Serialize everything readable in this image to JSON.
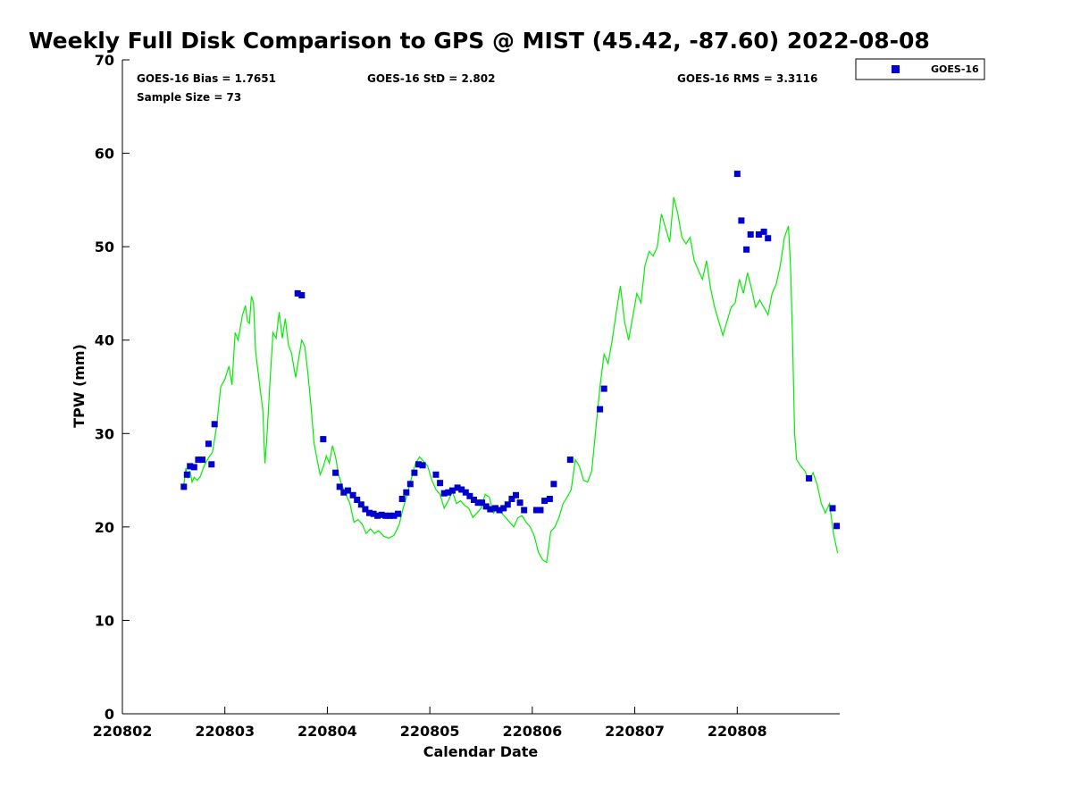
{
  "chart_data": {
    "type": "scatter",
    "title": "Weekly Full Disk Comparison to GPS @ MIST (45.42, -87.60) 2022-08-08",
    "xlabel": "Calendar Date",
    "ylabel": "TPW (mm)",
    "xlim": [
      220802,
      220809.0
    ],
    "ylim": [
      0,
      70
    ],
    "xticks": [
      "220802",
      "220803",
      "220804",
      "220805",
      "220806",
      "220807",
      "220808"
    ],
    "yticks": [
      "0",
      "10",
      "20",
      "30",
      "40",
      "50",
      "60",
      "70"
    ],
    "grid": false,
    "legend_placement": "top-right-outside",
    "colors": {
      "goes16": "#0000cc",
      "gps": "#00ee00"
    },
    "stats": {
      "bias": "GOES-16 Bias = 1.7651",
      "std": "GOES-16 StD = 2.802",
      "rms": "GOES-16 RMS = 3.3116",
      "sample_size": "Sample Size = 73"
    },
    "series": [
      {
        "name": "GOES-16",
        "x": [
          220802.6,
          220802.63,
          220802.66,
          220802.7,
          220802.74,
          220802.78,
          220802.84,
          220802.87,
          220802.9,
          220803.71,
          220803.75,
          220803.96,
          220804.08,
          220804.12,
          220804.16,
          220804.2,
          220804.25,
          220804.29,
          220804.33,
          220804.37,
          220804.41,
          220804.45,
          220804.49,
          220804.53,
          220804.57,
          220804.61,
          220804.65,
          220804.69,
          220804.73,
          220804.77,
          220804.81,
          220804.85,
          220804.89,
          220804.93,
          220805.06,
          220805.1,
          220805.14,
          220805.18,
          220805.22,
          220805.27,
          220805.31,
          220805.35,
          220805.39,
          220805.43,
          220805.47,
          220805.51,
          220805.55,
          220805.59,
          220805.64,
          220805.68,
          220805.72,
          220805.76,
          220805.8,
          220805.84,
          220805.88,
          220805.92,
          220806.04,
          220806.08,
          220806.12,
          220806.17,
          220806.21,
          220806.37,
          220806.66,
          220806.7,
          220808.0,
          220808.04,
          220808.09,
          220808.13,
          220808.21,
          220808.26,
          220808.3,
          220808.7,
          220808.93,
          220808.97
        ],
        "y": [
          24.3,
          25.6,
          26.5,
          26.4,
          27.2,
          27.2,
          28.9,
          26.7,
          31.0,
          45.0,
          44.8,
          29.4,
          25.8,
          24.3,
          23.7,
          23.9,
          23.4,
          22.9,
          22.4,
          21.9,
          21.5,
          21.4,
          21.2,
          21.3,
          21.2,
          21.2,
          21.2,
          21.4,
          23.0,
          23.7,
          24.6,
          25.8,
          26.7,
          26.6,
          25.6,
          24.7,
          23.6,
          23.7,
          23.9,
          24.2,
          24.0,
          23.7,
          23.3,
          22.9,
          22.6,
          22.6,
          22.2,
          21.9,
          22.0,
          21.8,
          22.0,
          22.4,
          23.0,
          23.4,
          22.6,
          21.8,
          21.8,
          21.8,
          22.8,
          23.0,
          24.6,
          27.2,
          32.6,
          34.8,
          57.8,
          52.8,
          49.7,
          51.3,
          51.3,
          51.6,
          50.9,
          25.2,
          22.0,
          20.1
        ]
      },
      {
        "x": [
          220802.6,
          220802.62,
          220802.64,
          220802.66,
          220802.68,
          220802.7,
          220802.73,
          220802.76,
          220802.8,
          220802.84,
          220802.88,
          220802.92,
          220802.96,
          220803.0,
          220803.04,
          220803.07,
          220803.1,
          220803.13,
          220803.17,
          220803.2,
          220803.22,
          220803.24,
          220803.26,
          220803.28,
          220803.3,
          220803.33,
          220803.37,
          220803.39,
          220803.41,
          220803.44,
          220803.47,
          220803.5,
          220803.53,
          220803.56,
          220803.59,
          220803.62,
          220803.65,
          220803.69,
          220803.72,
          220803.75,
          220803.78,
          220803.81,
          220803.84,
          220803.87,
          220803.9,
          220803.93,
          220803.96,
          220803.99,
          220804.02,
          220804.05,
          220804.08,
          220804.11,
          220804.14,
          220804.18,
          220804.22,
          220804.26,
          220804.3,
          220804.34,
          220804.38,
          220804.42,
          220804.46,
          220804.5,
          220804.55,
          220804.6,
          220804.65,
          220804.7,
          220804.74,
          220804.78,
          220804.82,
          220804.86,
          220804.9,
          220804.94,
          220804.98,
          220805.02,
          220805.06,
          220805.1,
          220805.14,
          220805.18,
          220805.22,
          220805.26,
          220805.3,
          220805.34,
          220805.38,
          220805.42,
          220805.46,
          220805.5,
          220805.54,
          220805.58,
          220805.62,
          220805.66,
          220805.7,
          220805.74,
          220805.78,
          220805.82,
          220805.86,
          220805.9,
          220805.94,
          220805.98,
          220806.02,
          220806.06,
          220806.1,
          220806.14,
          220806.18,
          220806.22,
          220806.26,
          220806.3,
          220806.34,
          220806.38,
          220806.42,
          220806.46,
          220806.5,
          220806.54,
          220806.58,
          220806.62,
          220806.66,
          220806.7,
          220806.74,
          220806.78,
          220806.82,
          220806.86,
          220806.9,
          220806.94,
          220806.98,
          220807.02,
          220807.06,
          220807.1,
          220807.14,
          220807.18,
          220807.22,
          220807.26,
          220807.3,
          220807.34,
          220807.38,
          220807.42,
          220807.46,
          220807.5,
          220807.54,
          220807.58,
          220807.62,
          220807.66,
          220807.7,
          220807.74,
          220807.78,
          220807.82,
          220807.86,
          220807.9,
          220807.94,
          220807.98,
          220808.02,
          220808.06,
          220808.1,
          220808.14,
          220808.18,
          220808.22,
          220808.26,
          220808.3,
          220808.34,
          220808.38,
          220808.42,
          220808.46,
          220808.5,
          220808.52,
          220808.54,
          220808.56,
          220808.58,
          220808.62,
          220808.66,
          220808.7,
          220808.74,
          220808.78,
          220808.82,
          220808.86,
          220808.9,
          220808.94,
          220808.98
        ],
        "y": [
          24.5,
          26.3,
          25.2,
          26.0,
          24.8,
          25.3,
          25.0,
          25.4,
          26.6,
          27.4,
          28.0,
          30.8,
          35.0,
          35.8,
          37.2,
          35.2,
          40.8,
          40.0,
          42.6,
          43.7,
          42.0,
          41.8,
          44.7,
          44.0,
          38.8,
          36.0,
          32.5,
          26.8,
          29.5,
          35.5,
          40.8,
          40.2,
          43.0,
          40.2,
          42.3,
          39.5,
          38.6,
          36.0,
          38.0,
          40.0,
          39.3,
          36.5,
          33.0,
          29.0,
          27.2,
          25.6,
          26.4,
          27.6,
          26.8,
          28.7,
          27.5,
          25.6,
          24.5,
          23.5,
          22.5,
          20.5,
          20.8,
          20.3,
          19.3,
          19.8,
          19.3,
          19.6,
          19.0,
          18.8,
          19.1,
          20.2,
          22.0,
          23.5,
          25.2,
          26.8,
          27.5,
          27.0,
          26.5,
          25.0,
          24.0,
          23.5,
          22.0,
          22.8,
          23.8,
          22.5,
          22.8,
          22.3,
          22.0,
          21.0,
          21.5,
          22.0,
          23.5,
          23.2,
          21.5,
          22.0,
          21.5,
          21.0,
          20.5,
          20.0,
          21.0,
          21.2,
          20.5,
          20.0,
          19.0,
          17.3,
          16.5,
          16.2,
          19.5,
          20.0,
          21.0,
          22.5,
          23.2,
          24.0,
          27.2,
          26.5,
          25.0,
          24.8,
          26.0,
          30.5,
          35.0,
          38.5,
          37.5,
          40.0,
          43.0,
          45.8,
          42.0,
          40.0,
          42.5,
          45.0,
          44.0,
          48.0,
          49.5,
          49.0,
          50.0,
          53.5,
          52.0,
          50.5,
          55.3,
          53.5,
          51.0,
          50.3,
          51.0,
          48.5,
          47.5,
          46.5,
          48.5,
          45.5,
          43.5,
          42.0,
          40.5,
          42.0,
          43.5,
          44.0,
          46.5,
          45.0,
          47.2,
          45.5,
          43.5,
          44.3,
          43.5,
          42.7,
          45.0,
          46.0,
          48.0,
          51.0,
          52.2,
          48.0,
          40.0,
          30.0,
          27.2,
          26.5,
          26.0,
          25.0,
          25.8,
          24.5,
          22.5,
          21.5,
          22.5,
          19.2,
          17.2
        ]
      }
    ]
  }
}
